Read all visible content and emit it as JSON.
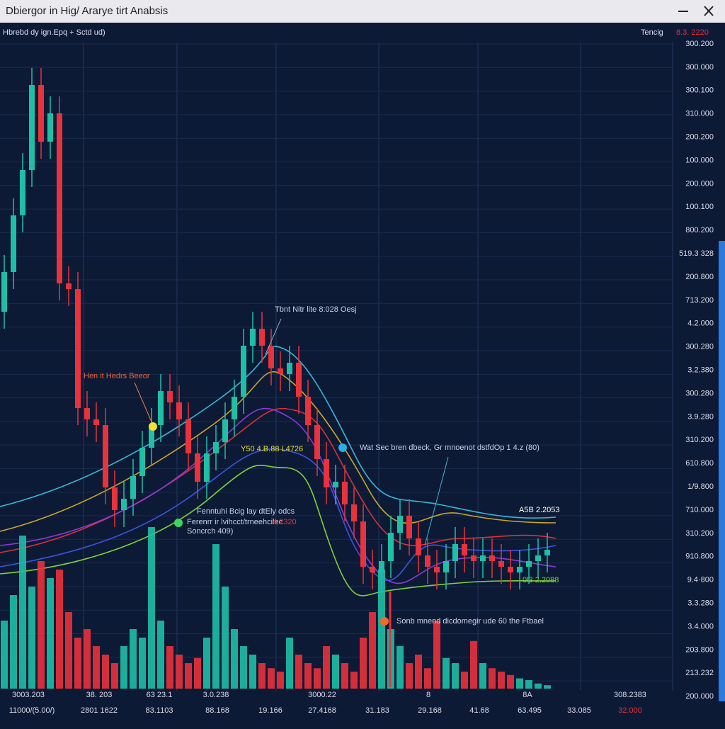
{
  "window": {
    "title": "Dbiergor in Hig/ Ararye tirt Anabsis",
    "subtitle": "Hbrebd dy ign.Epq + Sctd ud)",
    "status_label": "Tencig",
    "status_value": "8.3. 2220"
  },
  "chart_data": {
    "type": "candlestick",
    "open": [
      55,
      62,
      72,
      80,
      95,
      85,
      90,
      60,
      59,
      38,
      36,
      35,
      24,
      20,
      22,
      26,
      31,
      35,
      41,
      39,
      36,
      30,
      25,
      30,
      32,
      36,
      40,
      49,
      52,
      49,
      45,
      44,
      46,
      40,
      35,
      29,
      24,
      25,
      21,
      18,
      10,
      9,
      11,
      16,
      19,
      15,
      12,
      10,
      9,
      11,
      14,
      12,
      11,
      12,
      11,
      10,
      9,
      10,
      11,
      12
    ],
    "high": [
      65,
      75,
      83,
      98,
      98,
      93,
      93,
      63,
      62,
      41,
      39,
      38,
      27,
      25,
      29,
      34,
      38,
      44,
      44,
      42,
      39,
      33,
      33,
      35,
      39,
      43,
      52,
      55,
      55,
      52,
      48,
      49,
      49,
      43,
      38,
      32,
      28,
      28,
      24,
      21,
      13,
      14,
      19,
      22,
      22,
      18,
      15,
      13,
      14,
      17,
      17,
      15,
      15,
      15,
      14,
      13,
      13,
      14,
      15,
      16
    ],
    "low": [
      52,
      59,
      69,
      77,
      82,
      82,
      57,
      56,
      35,
      33,
      32,
      21,
      17,
      17,
      19,
      23,
      28,
      32,
      36,
      33,
      27,
      22,
      22,
      27,
      29,
      33,
      37,
      46,
      46,
      42,
      41,
      41,
      37,
      32,
      26,
      21,
      21,
      18,
      15,
      7,
      6,
      6,
      8,
      13,
      12,
      9,
      7,
      6,
      6,
      8,
      9,
      8,
      8,
      8,
      7,
      6,
      6,
      7,
      8,
      9
    ],
    "close": [
      62,
      72,
      80,
      95,
      85,
      90,
      60,
      59,
      38,
      36,
      35,
      24,
      20,
      22,
      26,
      31,
      35,
      41,
      39,
      36,
      30,
      25,
      30,
      32,
      36,
      40,
      49,
      52,
      49,
      45,
      44,
      46,
      40,
      35,
      29,
      24,
      25,
      21,
      18,
      10,
      9,
      11,
      16,
      19,
      15,
      12,
      10,
      9,
      11,
      14,
      12,
      11,
      12,
      11,
      10,
      9,
      10,
      11,
      12,
      13
    ],
    "ylim": [
      0,
      100
    ],
    "volume": {
      "values": [
        40,
        55,
        90,
        60,
        75,
        65,
        70,
        45,
        30,
        35,
        25,
        20,
        15,
        25,
        35,
        30,
        95,
        40,
        25,
        20,
        15,
        18,
        30,
        85,
        60,
        35,
        25,
        20,
        15,
        12,
        10,
        30,
        20,
        15,
        12,
        25,
        20,
        15,
        10,
        30,
        45,
        70,
        35,
        25,
        15,
        20,
        12,
        40,
        18,
        15,
        10,
        28,
        15,
        12,
        10,
        8,
        6,
        5,
        3,
        2
      ],
      "ylim": [
        0,
        100
      ]
    },
    "colors": {
      "up": "#1fbfa6",
      "down": "#e8323c"
    }
  },
  "price_labels": [
    "300.200",
    "300.000",
    "300.100",
    "310.000",
    "200.200",
    "100.000",
    "200.000",
    "100.100",
    "800.200",
    "519.3 328",
    "200.800",
    "713.200",
    "4.2.000",
    "300.280",
    "3.2.380",
    "300.280",
    "3.9.280",
    "310.200",
    "610.800",
    "1/9.800",
    "710.000",
    "310.200",
    "910.800",
    "9.4·800",
    "3.3.280",
    "3.4.000",
    "203.800",
    "213.232",
    "200.000"
  ],
  "time_labels_top": [
    "3003.203",
    "38. 203",
    "63 23.1",
    "3.0.238",
    "3000.22",
    "8",
    "8A",
    "308.2383"
  ],
  "time_labels_bottom": [
    "11000/(5.00/)",
    "2801 1622",
    "83.1103",
    "88.168",
    "19.166",
    "27.4168",
    "31.183",
    "29.168",
    "41.68",
    "63.495",
    "33.085",
    "32.000"
  ],
  "annotations": [
    "Tbnt Nitr lite 8:028 Oesj",
    "Hen it Hedrs Beeor",
    "Y50 4.B.88 L4726",
    "Wat Sec bren dbeck, Gr mnoenot dstfdOp 1 4.z (80)",
    "Fenntuhi Bcig lay dtEly odcs",
    "Ferenrr ir lvihcct/trneehcilec",
    "4.2320",
    "Soncrch 409)",
    "A5B 2.2053",
    "0l3 2.2088",
    "Sonb mnend dicdomegir ude 60 the Ftbael"
  ]
}
